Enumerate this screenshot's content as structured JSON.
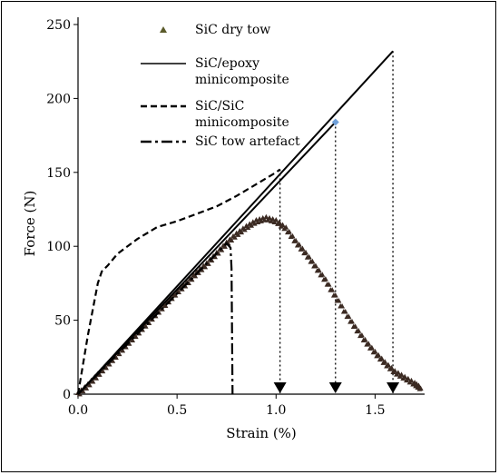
{
  "chart_data": {
    "type": "line",
    "title": "",
    "xlabel": "Strain (%)",
    "ylabel": "Force (N)",
    "xlim": [
      0.0,
      1.75
    ],
    "ylim": [
      0,
      250
    ],
    "xticks": [
      0.0,
      0.5,
      1.0,
      1.5
    ],
    "xtick_labels": [
      "0.0",
      "0.5",
      "1.0",
      "1.5"
    ],
    "yticks": [
      0,
      50,
      100,
      150,
      200,
      250
    ],
    "ytick_labels": [
      "0",
      "50",
      "100",
      "150",
      "200",
      "250"
    ],
    "grid": false,
    "legend_position": "top-center",
    "series": [
      {
        "name": "SiC dry tow",
        "style": "markers",
        "color": "#3b2a22",
        "x": [
          0.0,
          0.05,
          0.1,
          0.15,
          0.2,
          0.25,
          0.3,
          0.35,
          0.4,
          0.45,
          0.5,
          0.55,
          0.6,
          0.65,
          0.7,
          0.75,
          0.8,
          0.85,
          0.9,
          0.95,
          1.0,
          1.05,
          1.1,
          1.15,
          1.2,
          1.25,
          1.3,
          1.35,
          1.4,
          1.45,
          1.5,
          1.55,
          1.6,
          1.65,
          1.7,
          1.73
        ],
        "y": [
          0,
          6,
          13,
          20,
          27,
          34,
          41,
          48,
          55,
          62,
          69,
          75,
          82,
          88,
          95,
          102,
          108,
          113,
          117,
          119,
          117,
          112,
          103,
          95,
          86,
          77,
          66,
          55,
          45,
          36,
          28,
          21,
          15,
          11,
          7,
          4
        ]
      },
      {
        "name": "SiC/epoxy minicomposite",
        "style": "solid",
        "color": "#000000",
        "x": [
          0.0,
          1.59
        ],
        "y": [
          0,
          232
        ]
      },
      {
        "name": "SiC/SiC minicomposite",
        "style": "dashed",
        "color": "#000000",
        "x": [
          0.0,
          0.05,
          0.1,
          0.12,
          0.15,
          0.2,
          0.3,
          0.4,
          0.5,
          0.6,
          0.7,
          0.8,
          0.9,
          1.0,
          1.02
        ],
        "y": [
          0,
          40,
          75,
          83,
          87,
          95,
          105,
          113,
          117,
          122,
          127,
          134,
          142,
          150,
          152
        ]
      },
      {
        "name": "SiC tow artefact",
        "style": "dash-dot",
        "color": "#000000",
        "x": [
          0.0,
          0.5,
          0.75,
          0.77,
          0.775,
          0.78
        ],
        "y": [
          0,
          68,
          102,
          99,
          85,
          0
        ]
      },
      {
        "name": "",
        "style": "solid",
        "color": "#000000",
        "x": [
          0.0,
          1.3
        ],
        "y": [
          0,
          184
        ]
      }
    ],
    "failure_markers": [
      {
        "x": 1.02,
        "y": 152
      },
      {
        "x": 1.3,
        "y": 184
      },
      {
        "x": 1.59,
        "y": 232
      }
    ],
    "point_marker": {
      "x": 1.3,
      "y": 184,
      "color": "#6f9fd8"
    }
  }
}
